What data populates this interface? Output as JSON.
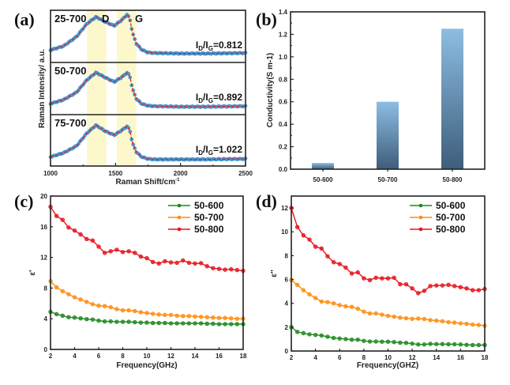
{
  "chart_data": [
    {
      "id": "a",
      "panel_label": "(a)",
      "type": "line",
      "title": "",
      "xlabel": "Raman Shift/cm",
      "xlabel_sup": "-1",
      "ylabel": "Raman Intensity/ a.u.",
      "xlim": [
        1000,
        2500
      ],
      "xticks": [
        1000,
        1500,
        2000,
        2500
      ],
      "bands": [
        {
          "name": "D",
          "range": [
            1280,
            1430
          ]
        },
        {
          "name": "G",
          "range": [
            1510,
            1660
          ]
        }
      ],
      "series": [
        {
          "name": "25-700",
          "ratio_label": "I",
          "ratio_sub1": "D",
          "ratio_sub2": "G",
          "ratio_value": "=0.812",
          "x": [
            1000,
            1100,
            1200,
            1280,
            1350,
            1420,
            1490,
            1550,
            1590,
            1610,
            1630,
            1660,
            1700,
            1750,
            1800,
            2000,
            2200,
            2500
          ],
          "y": [
            0.25,
            0.33,
            0.52,
            0.78,
            0.92,
            0.82,
            0.74,
            0.86,
            0.97,
            0.88,
            0.6,
            0.38,
            0.26,
            0.2,
            0.19,
            0.18,
            0.18,
            0.19
          ]
        },
        {
          "name": "50-700",
          "ratio_label": "I",
          "ratio_sub1": "D",
          "ratio_sub2": "G",
          "ratio_value": "=0.892",
          "x": [
            1000,
            1100,
            1200,
            1280,
            1350,
            1420,
            1490,
            1550,
            1590,
            1610,
            1630,
            1660,
            1700,
            1750,
            1800,
            2000,
            2200,
            2500
          ],
          "y": [
            0.22,
            0.3,
            0.45,
            0.7,
            0.85,
            0.75,
            0.66,
            0.76,
            0.85,
            0.78,
            0.52,
            0.32,
            0.22,
            0.18,
            0.17,
            0.16,
            0.16,
            0.17
          ]
        },
        {
          "name": "75-700",
          "ratio_label": "I",
          "ratio_sub1": "D",
          "ratio_sub2": "G",
          "ratio_value": "=1.022",
          "x": [
            1000,
            1100,
            1200,
            1280,
            1350,
            1420,
            1490,
            1550,
            1590,
            1610,
            1630,
            1660,
            1700,
            1750,
            1800,
            2000,
            2200,
            2500
          ],
          "y": [
            0.2,
            0.28,
            0.42,
            0.68,
            0.84,
            0.72,
            0.64,
            0.74,
            0.82,
            0.74,
            0.48,
            0.3,
            0.2,
            0.16,
            0.15,
            0.15,
            0.15,
            0.16
          ]
        }
      ]
    },
    {
      "id": "b",
      "panel_label": "(b)",
      "type": "bar",
      "title": "",
      "xlabel": "",
      "ylabel": "Conductivity(S m-1)",
      "ylim": [
        0,
        1.4
      ],
      "yticks": [
        "0.0",
        "0.2",
        "0.4",
        "0.6",
        "0.8",
        "1.0",
        "1.2",
        "1.4"
      ],
      "categories": [
        "50-600",
        "50-700",
        "50-800"
      ],
      "values": [
        0.055,
        0.6,
        1.25
      ],
      "bar_color_top": "#8dbde3",
      "bar_color_bottom": "#3e5d7a"
    },
    {
      "id": "c",
      "panel_label": "(c)",
      "type": "line",
      "title": "",
      "xlabel": "Frequency(GHz)",
      "ylabel": "ε'",
      "xlim": [
        2,
        18
      ],
      "ylim": [
        0,
        20
      ],
      "xticks": [
        2,
        4,
        6,
        8,
        10,
        12,
        14,
        16,
        18
      ],
      "yticks": [
        0,
        4,
        8,
        12,
        16,
        20
      ],
      "legend_position": "top-right",
      "x": [
        2,
        2.5,
        3,
        3.5,
        4,
        4.5,
        5,
        5.5,
        6,
        6.5,
        7,
        7.5,
        8,
        8.5,
        9,
        9.5,
        10,
        10.5,
        11,
        11.5,
        12,
        12.5,
        13,
        13.5,
        14,
        14.5,
        15,
        15.5,
        16,
        16.5,
        17,
        17.5,
        18
      ],
      "series": [
        {
          "name": "50-600",
          "color": "#1e8a1e",
          "values": [
            4.9,
            4.6,
            4.4,
            4.2,
            4.15,
            4.05,
            3.95,
            3.9,
            3.75,
            3.65,
            3.65,
            3.6,
            3.6,
            3.6,
            3.55,
            3.5,
            3.5,
            3.45,
            3.45,
            3.45,
            3.4,
            3.4,
            3.4,
            3.4,
            3.4,
            3.4,
            3.35,
            3.35,
            3.3,
            3.3,
            3.3,
            3.3,
            3.3
          ]
        },
        {
          "name": "50-700",
          "color": "#ff8c10",
          "values": [
            8.9,
            8.1,
            7.6,
            7.2,
            6.8,
            6.5,
            6.2,
            5.9,
            5.7,
            5.65,
            5.5,
            5.25,
            5.1,
            5.1,
            5.0,
            4.85,
            4.75,
            4.65,
            4.55,
            4.5,
            4.5,
            4.4,
            4.35,
            4.35,
            4.3,
            4.25,
            4.2,
            4.15,
            4.1,
            4.1,
            4.05,
            4.0,
            4.0
          ]
        },
        {
          "name": "50-800",
          "color": "#e8141c",
          "values": [
            18.6,
            17.4,
            16.9,
            15.9,
            15.5,
            15.0,
            14.4,
            14.2,
            13.4,
            12.6,
            12.8,
            13.0,
            12.7,
            12.8,
            12.6,
            12.1,
            11.9,
            11.4,
            11.2,
            11.5,
            11.35,
            11.3,
            11.6,
            11.3,
            11.2,
            11.25,
            10.85,
            10.6,
            10.5,
            10.4,
            10.45,
            10.35,
            10.25
          ]
        }
      ]
    },
    {
      "id": "d",
      "panel_label": "(d)",
      "type": "line",
      "title": "",
      "xlabel": "Frequency(GHZ)",
      "ylabel": "ε''",
      "xlim": [
        2,
        18
      ],
      "ylim": [
        0,
        13
      ],
      "xticks": [
        2,
        4,
        6,
        8,
        10,
        12,
        14,
        16,
        18
      ],
      "yticks": [
        0,
        2,
        4,
        6,
        8,
        10,
        12
      ],
      "legend_position": "top-right",
      "x": [
        2,
        2.5,
        3,
        3.5,
        4,
        4.5,
        5,
        5.5,
        6,
        6.5,
        7,
        7.5,
        8,
        8.5,
        9,
        9.5,
        10,
        10.5,
        11,
        11.5,
        12,
        12.5,
        13,
        13.5,
        14,
        14.5,
        15,
        15.5,
        16,
        16.5,
        17,
        17.5,
        18
      ],
      "series": [
        {
          "name": "50-600",
          "color": "#1e8a1e",
          "values": [
            2.0,
            1.6,
            1.5,
            1.4,
            1.35,
            1.3,
            1.2,
            1.1,
            1.05,
            1.0,
            0.95,
            0.95,
            0.85,
            0.8,
            0.8,
            0.78,
            0.78,
            0.75,
            0.7,
            0.68,
            0.62,
            0.55,
            0.55,
            0.6,
            0.58,
            0.58,
            0.57,
            0.57,
            0.55,
            0.52,
            0.5,
            0.5,
            0.5
          ]
        },
        {
          "name": "50-700",
          "color": "#ff8c10",
          "values": [
            5.95,
            5.55,
            5.1,
            4.75,
            4.45,
            4.15,
            4.1,
            4.0,
            3.85,
            3.75,
            3.7,
            3.55,
            3.3,
            3.15,
            3.15,
            3.05,
            2.95,
            2.88,
            2.8,
            2.75,
            2.7,
            2.72,
            2.68,
            2.6,
            2.55,
            2.5,
            2.42,
            2.38,
            2.32,
            2.28,
            2.22,
            2.18,
            2.12
          ]
        },
        {
          "name": "50-800",
          "color": "#e8141c",
          "values": [
            12.0,
            10.4,
            9.7,
            9.35,
            8.75,
            8.6,
            7.95,
            7.45,
            7.3,
            7.0,
            6.5,
            6.6,
            6.1,
            5.95,
            6.15,
            6.1,
            6.1,
            6.15,
            5.6,
            5.6,
            5.25,
            4.85,
            5.05,
            5.45,
            5.5,
            5.5,
            5.55,
            5.45,
            5.35,
            5.25,
            5.1,
            5.1,
            5.2
          ]
        }
      ]
    }
  ]
}
